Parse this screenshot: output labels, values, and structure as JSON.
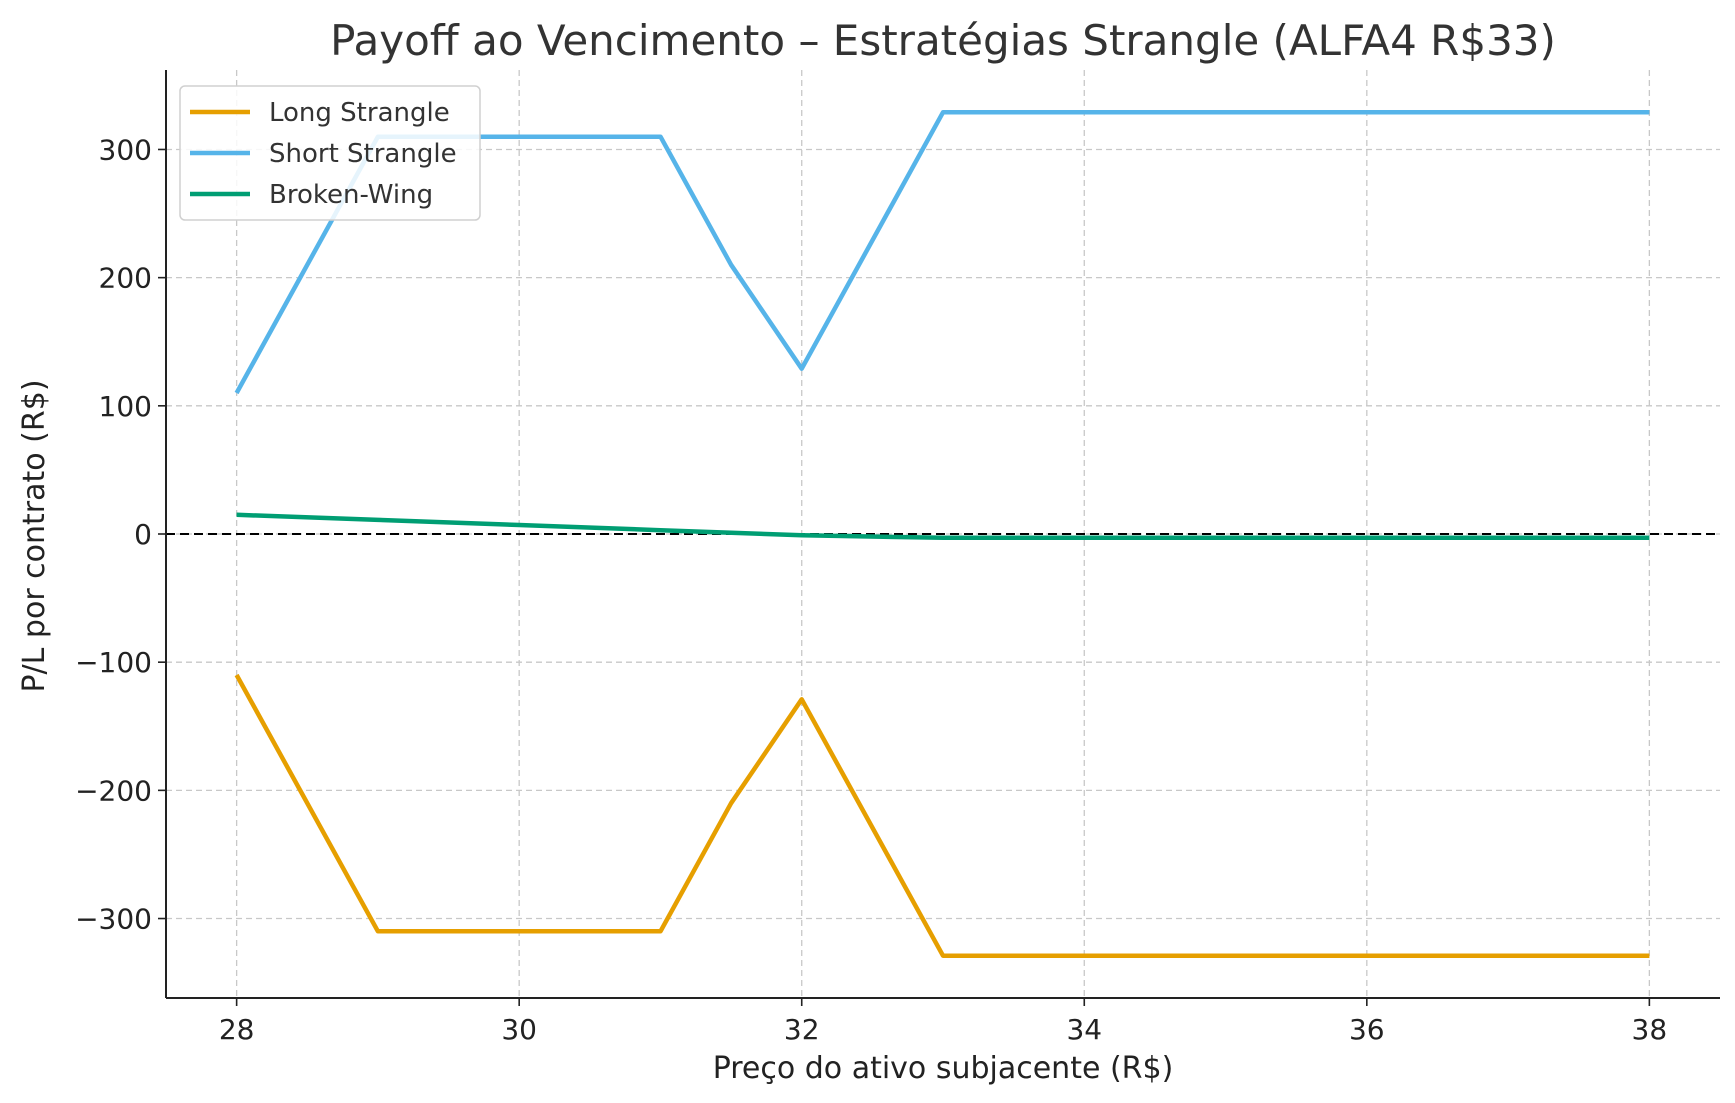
{
  "chart_data": {
    "type": "line",
    "title": "Payoff ao Vencimento – Estratégias Strangle (ALFA4 R$33)",
    "xlabel": "Preço do ativo subjacente (R$)",
    "ylabel": "P/L por contrato (R$)",
    "xlim": [
      27.5,
      38.5
    ],
    "ylim": [
      -362,
      362
    ],
    "xticks": [
      28,
      30,
      32,
      34,
      36,
      38
    ],
    "yticks": [
      -300,
      -200,
      -100,
      0,
      100,
      200,
      300
    ],
    "xtick_labels": [
      "28",
      "30",
      "32",
      "34",
      "36",
      "38"
    ],
    "ytick_labels": [
      "−300",
      "−200",
      "−100",
      "0",
      "100",
      "200",
      "300"
    ],
    "grid": true,
    "legend_position": "top-left",
    "reference_line": {
      "y": 0,
      "style": "dashed",
      "color": "#000000"
    },
    "series": [
      {
        "name": "Long Strangle",
        "color": "#E69F00",
        "x": [
          28,
          29,
          31,
          31.5,
          32,
          33,
          38
        ],
        "y": [
          -110,
          -310,
          -310,
          -210,
          -129,
          -329,
          -329
        ]
      },
      {
        "name": "Short Strangle",
        "color": "#56B4E9",
        "x": [
          28,
          29,
          31,
          31.5,
          32,
          33,
          38
        ],
        "y": [
          110,
          310,
          310,
          210,
          129,
          329,
          329
        ]
      },
      {
        "name": "Broken-Wing",
        "color": "#009E73",
        "x": [
          28,
          29,
          30,
          31,
          32,
          33,
          38
        ],
        "y": [
          15,
          11,
          7,
          3,
          -1,
          -3,
          -3
        ]
      }
    ]
  }
}
